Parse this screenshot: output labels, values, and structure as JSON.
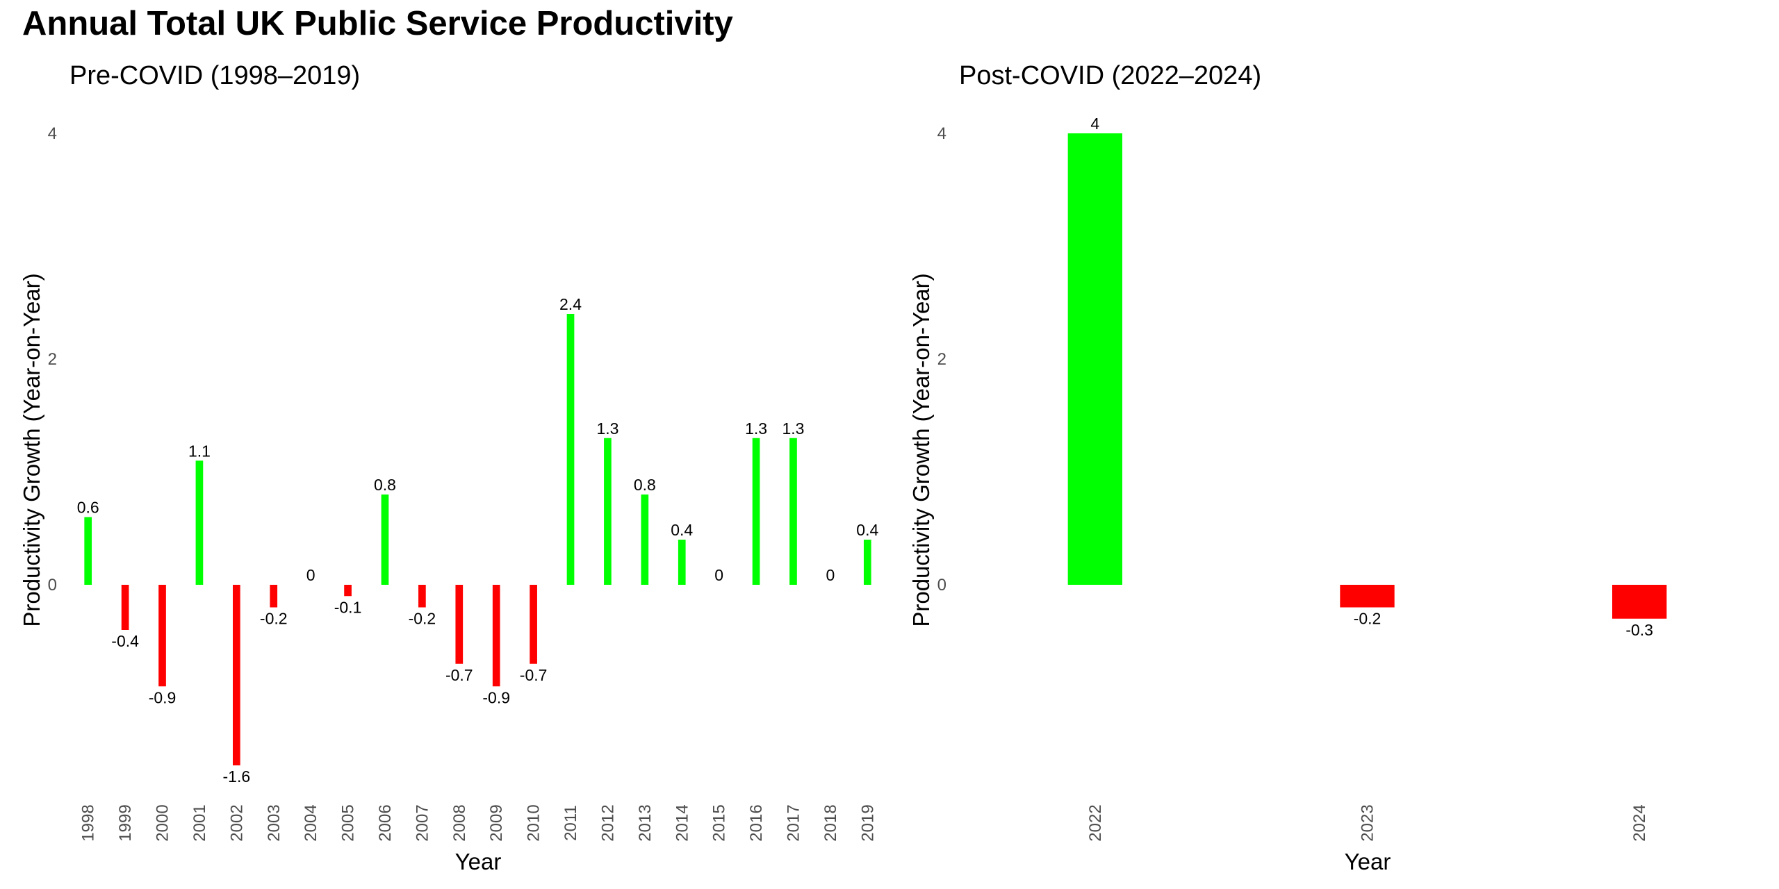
{
  "title": "Annual Total UK Public Service Productivity",
  "colors": {
    "positive": "#00ff00",
    "negative": "#ff0000",
    "zero": "#ffffff"
  },
  "chart_data": [
    {
      "type": "bar",
      "title": "Pre-COVID (1998–2019)",
      "xlabel": "Year",
      "ylabel": "Productivity Growth (Year-on-Year)",
      "ylim": [
        -1.6,
        4
      ],
      "yticks": [
        0,
        2,
        4
      ],
      "grid": false,
      "categories": [
        "1998",
        "1999",
        "2000",
        "2001",
        "2002",
        "2003",
        "2004",
        "2005",
        "2006",
        "2007",
        "2008",
        "2009",
        "2010",
        "2011",
        "2012",
        "2013",
        "2014",
        "2015",
        "2016",
        "2017",
        "2018",
        "2019"
      ],
      "values": [
        0.6,
        -0.4,
        -0.9,
        1.1,
        -1.6,
        -0.2,
        0,
        -0.1,
        0.8,
        -0.2,
        -0.7,
        -0.9,
        -0.7,
        2.4,
        1.3,
        0.8,
        0.4,
        0,
        1.3,
        1.3,
        0,
        0.4
      ]
    },
    {
      "type": "bar",
      "title": "Post-COVID (2022–2024)",
      "xlabel": "Year",
      "ylabel": "Productivity Growth (Year-on-Year)",
      "ylim": [
        -1.6,
        4
      ],
      "yticks": [
        0,
        2,
        4
      ],
      "grid": false,
      "categories": [
        "2022",
        "2023",
        "2024"
      ],
      "values": [
        4,
        -0.2,
        -0.3
      ]
    }
  ]
}
